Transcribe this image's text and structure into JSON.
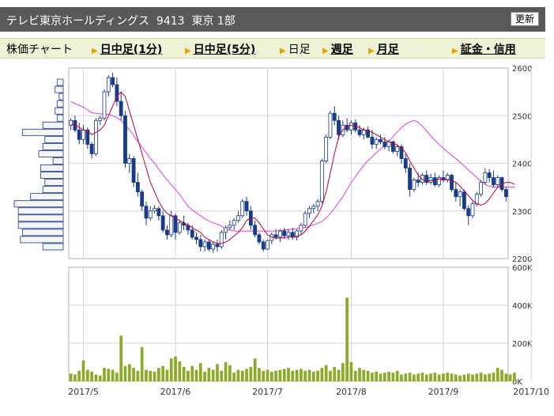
{
  "header": {
    "title": "テレビ東京ホールディングス  9413  東京 1部",
    "refresh_label": "更新"
  },
  "nav": {
    "items": [
      {
        "label": "株価チャート",
        "link": false,
        "arrow": false
      },
      {
        "label": "日中足(1分)",
        "link": true,
        "arrow": true
      },
      {
        "label": "日中足(5分)",
        "link": true,
        "arrow": true
      },
      {
        "label": "日足",
        "link": false,
        "arrow": true
      },
      {
        "label": "週足",
        "link": true,
        "arrow": true
      },
      {
        "label": "月足",
        "link": true,
        "arrow": true
      },
      {
        "label": "証金・信用",
        "link": true,
        "arrow": true
      }
    ]
  },
  "chart_data": {
    "type": "candlestick",
    "price_axis": {
      "ticks": [
        2200,
        2300,
        2400,
        2500,
        2600
      ],
      "range": [
        2200,
        2600
      ]
    },
    "volume_axis": {
      "ticks": [
        "0K",
        "200K",
        "400K",
        "600K"
      ],
      "tick_values": [
        0,
        200000,
        400000,
        600000
      ],
      "range": [
        0,
        600000
      ]
    },
    "x_labels": [
      "2017/5",
      "2017/6",
      "2017/7",
      "2017/8",
      "2017/9",
      "2017/10"
    ],
    "x_label_index": [
      3,
      25,
      47,
      67,
      89,
      110
    ],
    "colors": {
      "up": "#ffffff",
      "down": "#1a3a8a",
      "ma_short": "#c00030",
      "ma_long": "#e040e0",
      "volume": "#8aaa28",
      "volume_profile": "#f5f5f5"
    },
    "candles": [
      [
        2480,
        2495,
        2470,
        2490
      ],
      [
        2490,
        2500,
        2465,
        2470
      ],
      [
        2470,
        2485,
        2440,
        2450
      ],
      [
        2450,
        2480,
        2440,
        2470
      ],
      [
        2470,
        2475,
        2430,
        2440
      ],
      [
        2440,
        2445,
        2410,
        2420
      ],
      [
        2420,
        2495,
        2415,
        2490
      ],
      [
        2490,
        2500,
        2480,
        2495
      ],
      [
        2495,
        2555,
        2490,
        2550
      ],
      [
        2550,
        2585,
        2540,
        2580
      ],
      [
        2580,
        2590,
        2560,
        2565
      ],
      [
        2565,
        2580,
        2520,
        2530
      ],
      [
        2530,
        2550,
        2490,
        2500
      ],
      [
        2500,
        2510,
        2390,
        2400
      ],
      [
        2400,
        2420,
        2380,
        2410
      ],
      [
        2410,
        2415,
        2350,
        2360
      ],
      [
        2360,
        2380,
        2330,
        2340
      ],
      [
        2340,
        2345,
        2300,
        2310
      ],
      [
        2310,
        2320,
        2270,
        2285
      ],
      [
        2285,
        2310,
        2280,
        2300
      ],
      [
        2300,
        2312,
        2295,
        2305
      ],
      [
        2305,
        2310,
        2280,
        2290
      ],
      [
        2290,
        2300,
        2255,
        2260
      ],
      [
        2260,
        2270,
        2240,
        2250
      ],
      [
        2250,
        2300,
        2245,
        2290
      ],
      [
        2290,
        2295,
        2240,
        2255
      ],
      [
        2255,
        2280,
        2250,
        2275
      ],
      [
        2275,
        2290,
        2260,
        2270
      ],
      [
        2270,
        2275,
        2250,
        2260
      ],
      [
        2260,
        2270,
        2240,
        2245
      ],
      [
        2245,
        2255,
        2230,
        2240
      ],
      [
        2240,
        2250,
        2215,
        2225
      ],
      [
        2225,
        2240,
        2215,
        2235
      ],
      [
        2235,
        2240,
        2215,
        2220
      ],
      [
        2220,
        2235,
        2212,
        2230
      ],
      [
        2230,
        2240,
        2215,
        2225
      ],
      [
        2225,
        2260,
        2220,
        2255
      ],
      [
        2255,
        2270,
        2240,
        2265
      ],
      [
        2265,
        2280,
        2260,
        2270
      ],
      [
        2270,
        2285,
        2260,
        2280
      ],
      [
        2280,
        2300,
        2275,
        2290
      ],
      [
        2290,
        2325,
        2285,
        2320
      ],
      [
        2320,
        2330,
        2290,
        2300
      ],
      [
        2300,
        2310,
        2260,
        2270
      ],
      [
        2270,
        2280,
        2245,
        2250
      ],
      [
        2250,
        2255,
        2230,
        2235
      ],
      [
        2235,
        2240,
        2215,
        2220
      ],
      [
        2220,
        2240,
        2218,
        2238
      ],
      [
        2238,
        2255,
        2230,
        2250
      ],
      [
        2250,
        2262,
        2240,
        2245
      ],
      [
        2245,
        2262,
        2235,
        2258
      ],
      [
        2258,
        2265,
        2242,
        2248
      ],
      [
        2248,
        2262,
        2240,
        2255
      ],
      [
        2255,
        2265,
        2240,
        2245
      ],
      [
        2245,
        2262,
        2238,
        2258
      ],
      [
        2258,
        2275,
        2250,
        2270
      ],
      [
        2270,
        2300,
        2265,
        2295
      ],
      [
        2295,
        2310,
        2285,
        2305
      ],
      [
        2305,
        2315,
        2295,
        2310
      ],
      [
        2310,
        2325,
        2300,
        2320
      ],
      [
        2320,
        2410,
        2315,
        2405
      ],
      [
        2405,
        2460,
        2400,
        2455
      ],
      [
        2455,
        2510,
        2450,
        2505
      ],
      [
        2505,
        2520,
        2480,
        2490
      ],
      [
        2490,
        2500,
        2450,
        2460
      ],
      [
        2460,
        2490,
        2455,
        2480
      ],
      [
        2480,
        2495,
        2465,
        2470
      ],
      [
        2470,
        2490,
        2460,
        2485
      ],
      [
        2485,
        2492,
        2465,
        2470
      ],
      [
        2470,
        2480,
        2455,
        2460
      ],
      [
        2460,
        2475,
        2450,
        2470
      ],
      [
        2470,
        2478,
        2452,
        2455
      ],
      [
        2455,
        2470,
        2430,
        2440
      ],
      [
        2440,
        2455,
        2430,
        2450
      ],
      [
        2450,
        2460,
        2440,
        2445
      ],
      [
        2445,
        2455,
        2430,
        2435
      ],
      [
        2435,
        2450,
        2425,
        2445
      ],
      [
        2445,
        2448,
        2420,
        2425
      ],
      [
        2425,
        2440,
        2415,
        2435
      ],
      [
        2435,
        2440,
        2400,
        2410
      ],
      [
        2410,
        2420,
        2380,
        2390
      ],
      [
        2390,
        2400,
        2330,
        2345
      ],
      [
        2345,
        2370,
        2340,
        2365
      ],
      [
        2365,
        2380,
        2350,
        2360
      ],
      [
        2360,
        2380,
        2355,
        2375
      ],
      [
        2375,
        2385,
        2355,
        2360
      ],
      [
        2360,
        2378,
        2355,
        2370
      ],
      [
        2370,
        2380,
        2350,
        2355
      ],
      [
        2355,
        2375,
        2350,
        2370
      ],
      [
        2370,
        2385,
        2360,
        2365
      ],
      [
        2365,
        2380,
        2360,
        2375
      ],
      [
        2375,
        2378,
        2340,
        2345
      ],
      [
        2345,
        2360,
        2320,
        2330
      ],
      [
        2330,
        2345,
        2310,
        2340
      ],
      [
        2340,
        2345,
        2300,
        2305
      ],
      [
        2305,
        2312,
        2270,
        2290
      ],
      [
        2290,
        2320,
        2285,
        2315
      ],
      [
        2315,
        2340,
        2310,
        2335
      ],
      [
        2335,
        2365,
        2330,
        2360
      ],
      [
        2360,
        2390,
        2355,
        2380
      ],
      [
        2380,
        2388,
        2360,
        2370
      ],
      [
        2370,
        2385,
        2350,
        2355
      ],
      [
        2355,
        2375,
        2350,
        2370
      ],
      [
        2370,
        2372,
        2340,
        2345
      ],
      [
        2345,
        2350,
        2320,
        2330
      ]
    ],
    "ma_short": [
      2480,
      2482,
      2475,
      2470,
      2468,
      2460,
      2465,
      2470,
      2480,
      2500,
      2520,
      2540,
      2550,
      2540,
      2510,
      2480,
      2450,
      2420,
      2390,
      2360,
      2340,
      2320,
      2305,
      2295,
      2290,
      2285,
      2280,
      2275,
      2270,
      2265,
      2260,
      2255,
      2245,
      2240,
      2235,
      2232,
      2232,
      2235,
      2240,
      2248,
      2255,
      2265,
      2280,
      2285,
      2285,
      2275,
      2262,
      2250,
      2245,
      2243,
      2243,
      2244,
      2245,
      2246,
      2247,
      2250,
      2258,
      2268,
      2280,
      2292,
      2310,
      2340,
      2380,
      2420,
      2455,
      2470,
      2478,
      2480,
      2478,
      2475,
      2470,
      2468,
      2465,
      2460,
      2455,
      2450,
      2445,
      2442,
      2438,
      2432,
      2422,
      2405,
      2390,
      2375,
      2366,
      2363,
      2364,
      2366,
      2367,
      2367,
      2366,
      2364,
      2360,
      2352,
      2342,
      2332,
      2322,
      2315,
      2312,
      2316,
      2325,
      2338,
      2350,
      2356,
      2360,
      2360,
      2356
    ],
    "ma_long": [
      2530,
      2525,
      2522,
      2518,
      2512,
      2506,
      2505,
      2504,
      2503,
      2503,
      2500,
      2496,
      2490,
      2480,
      2470,
      2458,
      2446,
      2434,
      2422,
      2410,
      2400,
      2388,
      2376,
      2365,
      2355,
      2345,
      2335,
      2322,
      2310,
      2302,
      2296,
      2290,
      2284,
      2279,
      2275,
      2272,
      2268,
      2262,
      2260,
      2258,
      2258,
      2258,
      2258,
      2258,
      2258,
      2258,
      2258,
      2258,
      2258,
      2258,
      2259,
      2260,
      2261,
      2262,
      2263,
      2264,
      2265,
      2268,
      2271,
      2274,
      2278,
      2285,
      2295,
      2305,
      2318,
      2330,
      2345,
      2360,
      2372,
      2384,
      2396,
      2406,
      2414,
      2422,
      2430,
      2438,
      2447,
      2456,
      2466,
      2475,
      2482,
      2487,
      2490,
      2486,
      2478,
      2468,
      2458,
      2448,
      2440,
      2432,
      2424,
      2417,
      2410,
      2402,
      2394,
      2386,
      2378,
      2370,
      2362,
      2356,
      2352,
      2350,
      2350,
      2350,
      2350,
      2350,
      2350
    ],
    "volume": [
      40000,
      35000,
      55000,
      110000,
      60000,
      50000,
      35000,
      30000,
      70000,
      65000,
      60000,
      45000,
      240000,
      80000,
      90000,
      70000,
      55000,
      180000,
      60000,
      55000,
      50000,
      70000,
      80000,
      60000,
      120000,
      130000,
      105000,
      75000,
      55000,
      80000,
      60000,
      95000,
      50000,
      70000,
      60000,
      90000,
      55000,
      100000,
      85000,
      45000,
      60000,
      55000,
      65000,
      75000,
      120000,
      70000,
      55000,
      60000,
      50000,
      55000,
      60000,
      65000,
      70000,
      55000,
      60000,
      65000,
      55000,
      60000,
      50000,
      55000,
      70000,
      85000,
      55000,
      75000,
      60000,
      95000,
      440000,
      100000,
      55000,
      70000,
      60000,
      55000,
      45000,
      50000,
      40000,
      45000,
      50000,
      45000,
      55000,
      35000,
      40000,
      45000,
      35000,
      40000,
      45000,
      35000,
      40000,
      45000,
      35000,
      40000,
      45000,
      40000,
      35000,
      30000,
      35000,
      40000,
      35000,
      40000,
      45000,
      35000,
      40000,
      45000,
      70000,
      60000,
      40000,
      35000,
      45000
    ],
    "volume_profile": [
      [
        2570,
        3
      ],
      [
        2555,
        4
      ],
      [
        2540,
        2
      ],
      [
        2525,
        3
      ],
      [
        2510,
        4
      ],
      [
        2495,
        3
      ],
      [
        2480,
        10
      ],
      [
        2465,
        20
      ],
      [
        2450,
        9
      ],
      [
        2435,
        10
      ],
      [
        2420,
        12
      ],
      [
        2405,
        5
      ],
      [
        2390,
        11
      ],
      [
        2375,
        11
      ],
      [
        2360,
        9
      ],
      [
        2345,
        10
      ],
      [
        2330,
        16
      ],
      [
        2315,
        24
      ],
      [
        2300,
        22
      ],
      [
        2285,
        22
      ],
      [
        2270,
        22
      ],
      [
        2255,
        20
      ],
      [
        2240,
        21
      ],
      [
        2225,
        10
      ]
    ]
  }
}
